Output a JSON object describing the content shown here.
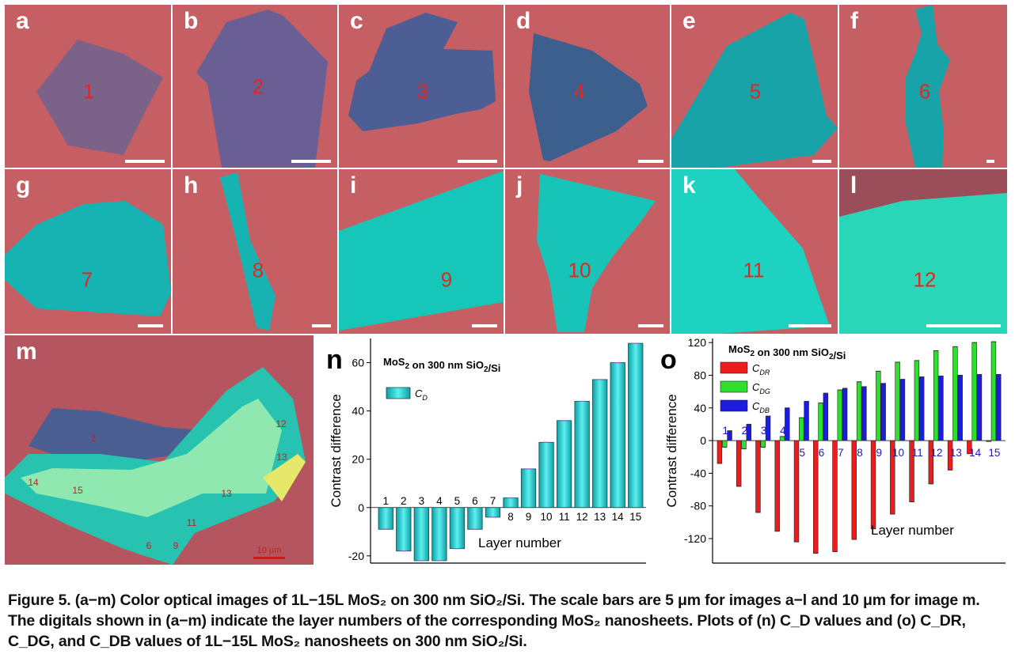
{
  "panels": [
    {
      "label": "a",
      "number": "1"
    },
    {
      "label": "b",
      "number": "2"
    },
    {
      "label": "c",
      "number": "3"
    },
    {
      "label": "d",
      "number": "4"
    },
    {
      "label": "e",
      "number": "5"
    },
    {
      "label": "f",
      "number": "6"
    },
    {
      "label": "g",
      "number": "7"
    },
    {
      "label": "h",
      "number": "8"
    },
    {
      "label": "i",
      "number": "9"
    },
    {
      "label": "j",
      "number": "10"
    },
    {
      "label": "k",
      "number": "11"
    },
    {
      "label": "l",
      "number": "12"
    }
  ],
  "panel_m": {
    "label": "m",
    "numbers": [
      "2",
      "12",
      "13",
      "14",
      "15",
      "13",
      "11",
      "6",
      "9"
    ],
    "scale_label": "10 μm"
  },
  "caption": {
    "lead": "Figure 5.",
    "text": "(a−m) Color optical images of 1L−15L MoS₂ on 300 nm SiO₂/Si. The scale bars are 5 μm for images a−l and 10 μm for image m. The digitals shown in (a−m) indicate the layer numbers of the corresponding MoS₂ nanosheets. Plots of (n) C_D values and (o) C_DR, C_DG, and C_DB values of 1L−15L MoS₂ nanosheets on 300 nm SiO₂/Si."
  },
  "colors": {
    "substrate": "#c85f62",
    "flake_thin": "#5e5f9a",
    "flake_thick": "#12b8b0",
    "red_series": "#ee1c1c",
    "green_series": "#2ee02e",
    "blue_series": "#1c1ce0"
  },
  "chart_data": [
    {
      "panel": "n",
      "type": "bar",
      "title": "MoS2 on 300 nm SiO2/Si",
      "xlabel": "Layer number",
      "ylabel": "Contrast difference",
      "ylim": [
        -23,
        70
      ],
      "yticks": [
        -20,
        0,
        20,
        40,
        60
      ],
      "categories": [
        "1",
        "2",
        "3",
        "4",
        "5",
        "6",
        "7",
        "8",
        "9",
        "10",
        "11",
        "12",
        "13",
        "14",
        "15"
      ],
      "series": [
        {
          "name": "C_D",
          "values": [
            -9,
            -18,
            -22,
            -22,
            -17,
            -9,
            -4,
            4,
            16,
            27,
            36,
            44,
            53,
            60,
            68
          ]
        }
      ],
      "legend": "upper-left"
    },
    {
      "panel": "o",
      "type": "bar",
      "title": "MoS2 on 300 nm SiO2/Si",
      "xlabel": "Layer number",
      "ylabel": "Contrast difference",
      "ylim": [
        -150,
        125
      ],
      "yticks": [
        -120,
        -80,
        -40,
        0,
        40,
        80,
        120
      ],
      "categories": [
        "1",
        "2",
        "3",
        "4",
        "5",
        "6",
        "7",
        "8",
        "9",
        "10",
        "11",
        "12",
        "13",
        "14",
        "15"
      ],
      "series": [
        {
          "name": "C_DR",
          "values": [
            -28,
            -56,
            -88,
            -111,
            -124,
            -138,
            -136,
            -121,
            -108,
            -90,
            -75,
            -53,
            -36,
            -16,
            -1
          ]
        },
        {
          "name": "C_DG",
          "values": [
            -8,
            -10,
            -8,
            5,
            28,
            46,
            62,
            72,
            85,
            96,
            98,
            110,
            115,
            120,
            121
          ]
        },
        {
          "name": "C_DB",
          "values": [
            12,
            20,
            30,
            40,
            48,
            58,
            64,
            66,
            70,
            75,
            78,
            79,
            80,
            81,
            81
          ]
        }
      ],
      "legend": "upper-left"
    }
  ]
}
